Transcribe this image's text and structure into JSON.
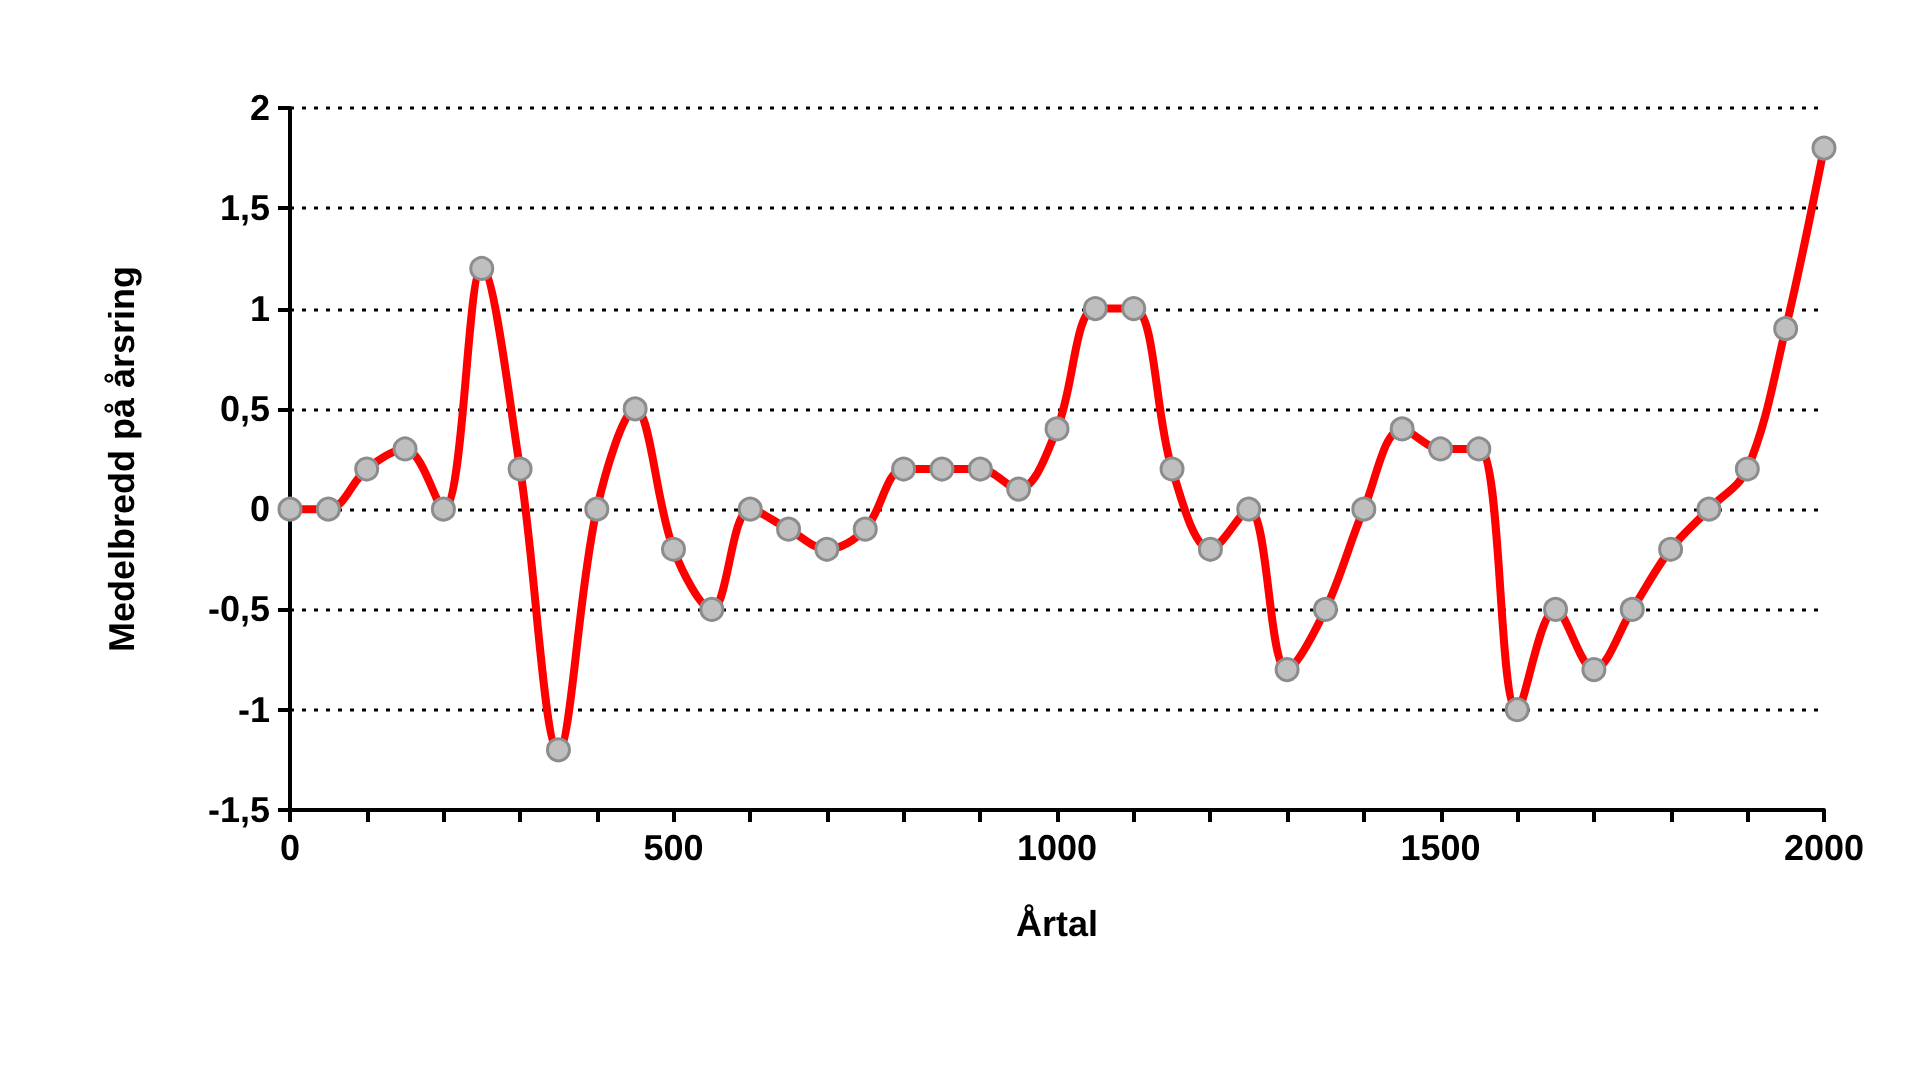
{
  "chart_data": {
    "type": "line",
    "xlabel": "Årtal",
    "ylabel": "Medelbredd på årsring",
    "x": [
      0,
      50,
      100,
      150,
      200,
      250,
      300,
      350,
      400,
      450,
      500,
      550,
      600,
      650,
      700,
      750,
      800,
      850,
      900,
      950,
      1000,
      1050,
      1100,
      1150,
      1200,
      1250,
      1300,
      1350,
      1400,
      1450,
      1500,
      1550,
      1600,
      1650,
      1700,
      1750,
      1800,
      1850,
      1900,
      1950,
      2000
    ],
    "series": [
      {
        "color": "#ff0000",
        "values": [
          0,
          0,
          0.2,
          0.3,
          0,
          1.2,
          0.2,
          -1.2,
          0,
          0.5,
          -0.2,
          -0.5,
          0,
          -0.1,
          -0.2,
          -0.1,
          0.2,
          0.2,
          0.2,
          0.1,
          0.4,
          1,
          1,
          0.2,
          -0.2,
          0,
          -0.8,
          -0.5,
          0,
          0.4,
          0.3,
          0.3,
          -1,
          -0.5,
          -0.8,
          -0.5,
          -0.2,
          0,
          0.2,
          0.9,
          1.8
        ]
      }
    ],
    "xlim": [
      0,
      2000
    ],
    "xticks": [
      0,
      500,
      1000,
      1500,
      2000
    ],
    "ylim": [
      -1.5,
      2
    ],
    "yticks": [
      {
        "value": -1.5,
        "label": "-1,5"
      },
      {
        "value": -1,
        "label": "-1"
      },
      {
        "value": -0.5,
        "label": "-0,5"
      },
      {
        "value": 0,
        "label": "0"
      },
      {
        "value": 0.5,
        "label": "0,5"
      },
      {
        "value": 1,
        "label": "1"
      },
      {
        "value": 1.5,
        "label": "1,5"
      },
      {
        "value": 2,
        "label": "2"
      }
    ],
    "grid": "y",
    "marker": "circle",
    "line_style": "solid"
  }
}
